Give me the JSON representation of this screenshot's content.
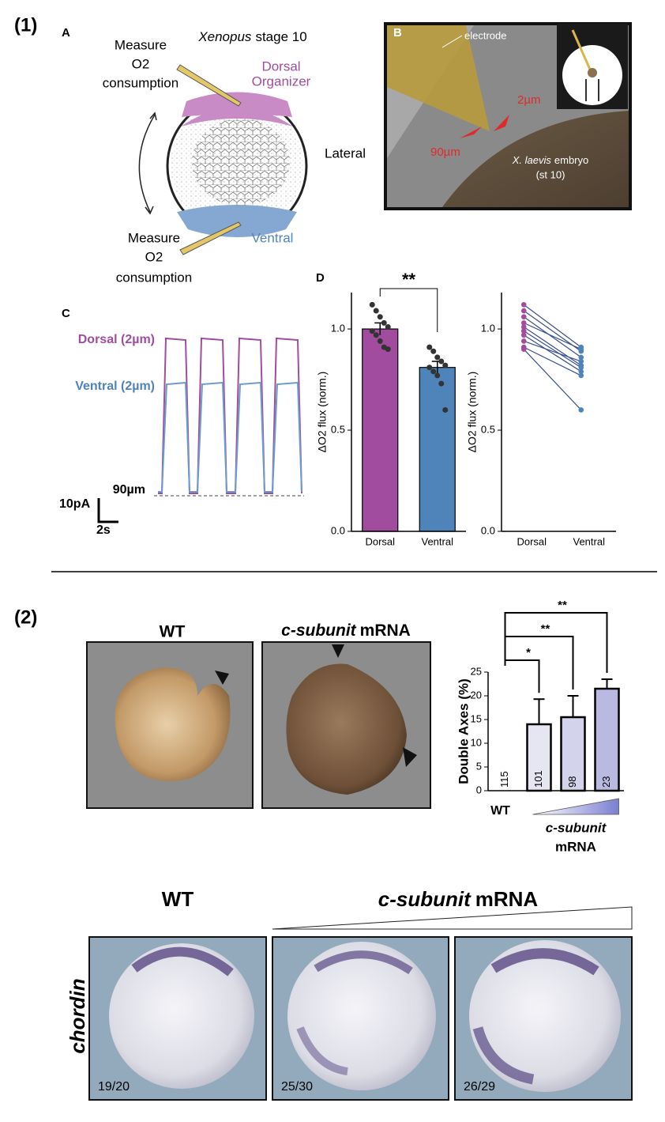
{
  "figure_labels": [
    "(1)",
    "(2)"
  ],
  "panel_A": {
    "label": "A",
    "title_italic": "Xenopus",
    "title_rest": "stage 10",
    "measure_top": [
      "Measure",
      "O2",
      "consumption"
    ],
    "dorsal": [
      "Dorsal",
      "Organizer"
    ],
    "lateral": "Lateral",
    "ventral": "Ventral",
    "measure_bottom": [
      "Measure",
      "O2",
      "consumption"
    ]
  },
  "panel_B": {
    "label": "B",
    "electrode": "electrode",
    "small": "2µm",
    "large": "90µm",
    "embryo_italic": "X. laevis",
    "embryo_rest": "embryo",
    "stage": "(st 10)"
  },
  "panel_C": {
    "label": "C",
    "dorsal": "Dorsal (2µm)",
    "ventral": "Ventral (2µm)",
    "distance": "90µm",
    "current": "10pA",
    "time": "2s"
  },
  "panel_D": {
    "label": "D"
  },
  "panel_2": {
    "wt": "WT",
    "mrna_italic": "c-subunit",
    "mrna_rest": "mRNA",
    "gene": "chordin",
    "ratios": [
      "19/20",
      "25/30",
      "26/29"
    ]
  },
  "chart_data": [
    {
      "type": "bar",
      "categories": [
        "Dorsal",
        "Ventral"
      ],
      "values": [
        1.0,
        0.81
      ],
      "errors": [
        0.03,
        0.03
      ],
      "points": [
        [
          1.12,
          1.09,
          1.06,
          1.03,
          1.01,
          0.99,
          0.97,
          0.94,
          0.91,
          0.9
        ],
        [
          0.91,
          0.89,
          0.86,
          0.84,
          0.82,
          0.81,
          0.79,
          0.77,
          0.73,
          0.6
        ]
      ],
      "colors": [
        "#a24ca0",
        "#4f84bb"
      ],
      "ylim": [
        0,
        1.18
      ],
      "yticks": [
        {
          "value": 0,
          "label": "0.0"
        },
        0.5,
        {
          "value": 1,
          "label": "1.0"
        }
      ],
      "y_label": "ΔO2 flux (norm.)",
      "significance": "**"
    },
    {
      "type": "paired",
      "categories": [
        "Dorsal",
        "Ventral"
      ],
      "pairs": [
        [
          1.12,
          0.91
        ],
        [
          1.09,
          0.89
        ],
        [
          1.06,
          0.86
        ],
        [
          1.03,
          0.9
        ],
        [
          1.01,
          0.82
        ],
        [
          0.99,
          0.81
        ],
        [
          0.97,
          0.79
        ],
        [
          0.94,
          0.84
        ],
        [
          0.91,
          0.77
        ],
        [
          0.9,
          0.6
        ]
      ],
      "colors": [
        "#a24ca0",
        "#4f84bb"
      ],
      "line_color": "#3b4f8f",
      "ylim": [
        0,
        1.18
      ],
      "yticks": [
        {
          "value": 0,
          "label": "0.0"
        },
        0.5,
        {
          "value": 1,
          "label": "1.0"
        }
      ],
      "y_label": "ΔO2 flux (norm.)"
    },
    {
      "type": "bar",
      "categories": [
        "WT",
        null,
        null,
        null
      ],
      "values": [
        0,
        14,
        15.5,
        21.5
      ],
      "errors": [
        0,
        5.3,
        4.5,
        2.0
      ],
      "n": [
        115,
        101,
        98,
        23
      ],
      "colors": [
        "#f4f4f8",
        "#e6e6f3",
        "#d3d3ec",
        "#b9b9e2"
      ],
      "ylim": [
        0,
        25
      ],
      "yticks": [
        0,
        5,
        10,
        15,
        20,
        25
      ],
      "y_label": "Double Axes (%)",
      "x_label": {
        "italic": "c-subunit",
        "rest": "mRNA"
      },
      "significance": [
        "*",
        "**",
        "**"
      ]
    }
  ]
}
